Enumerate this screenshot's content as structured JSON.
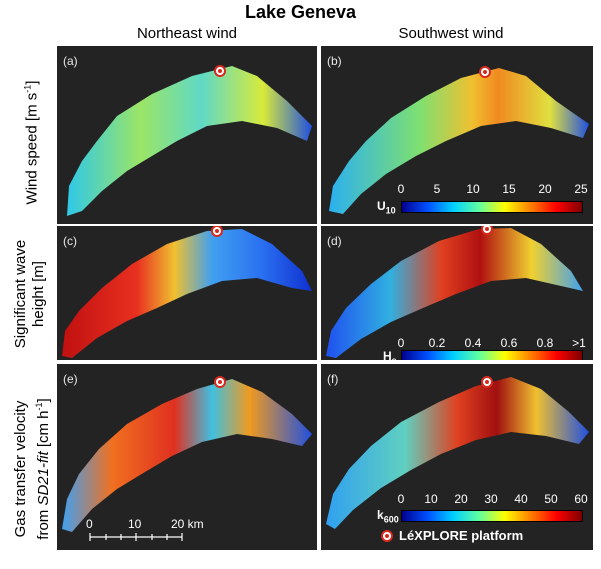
{
  "title": "Lake Geneva",
  "columns": [
    "Northeast wind",
    "Southwest wind"
  ],
  "rows": [
    {
      "line1": "Wind speed [m s",
      "sup": "-1",
      "line1_end": "]",
      "line2": ""
    },
    {
      "line1": "Significant wave",
      "line2": "height [m]"
    },
    {
      "line1": "Gas transfer velocity",
      "line2_prefix": "from ",
      "line2_italic": "SD21-fit",
      "line2_suffix": " [cm h",
      "line2_sup": "-1",
      "line2_end": "]"
    }
  ],
  "panels": [
    "(a)",
    "(b)",
    "(c)",
    "(d)",
    "(e)",
    "(f)"
  ],
  "colorbars": [
    {
      "var": "U",
      "sub": "10",
      "ticks": [
        "0",
        "5",
        "10",
        "15",
        "20",
        "25"
      ]
    },
    {
      "var": "H",
      "sub": "s",
      "ticks": [
        "0",
        "0.2",
        "0.4",
        "0.6",
        "0.8",
        ">1"
      ]
    },
    {
      "var": "k",
      "sub": "600",
      "ticks": [
        "0",
        "10",
        "20",
        "30",
        "40",
        "50",
        "60"
      ]
    }
  ],
  "scale_bar": {
    "ticks": [
      "0",
      "10",
      "20 km"
    ]
  },
  "legend": {
    "label": "LéXPLORE platform"
  },
  "colors": {
    "panel_bg": "#232323",
    "platform_marker": "#d62a1e"
  }
}
